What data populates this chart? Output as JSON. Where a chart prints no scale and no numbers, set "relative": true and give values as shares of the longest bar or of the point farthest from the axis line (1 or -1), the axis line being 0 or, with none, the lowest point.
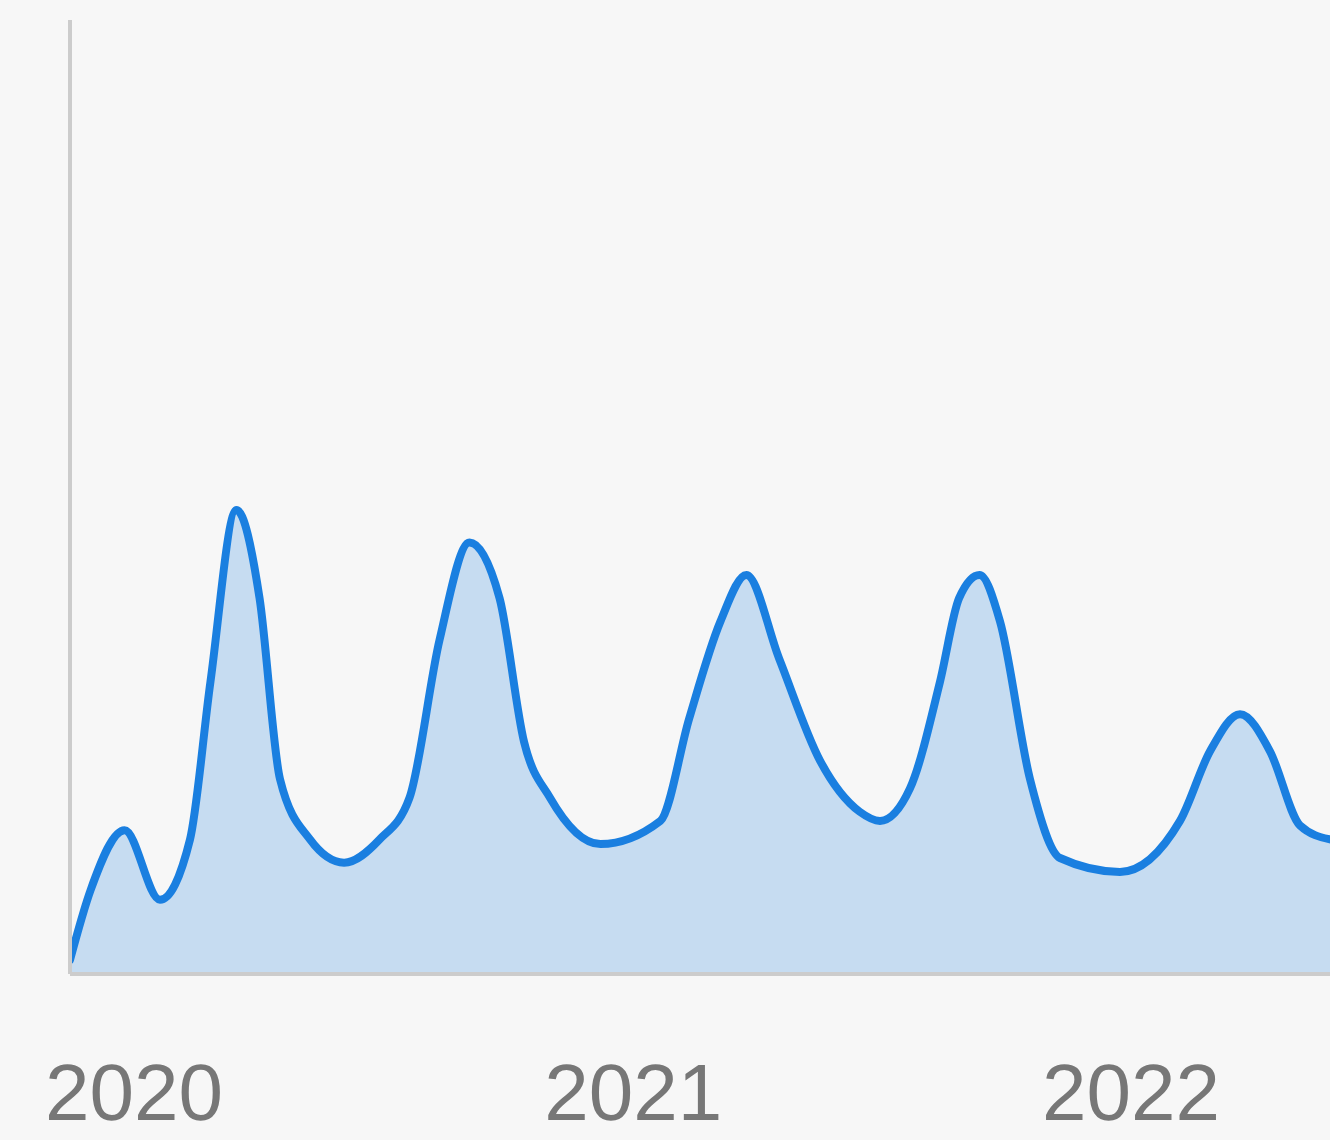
{
  "chart_data": {
    "type": "area",
    "relative": true,
    "xlim": [
      "2019-11-15",
      "2022-05-27"
    ],
    "xticks": [
      "2020",
      "2021",
      "2022"
    ],
    "x": [
      "2019-11-15",
      "2019-11-30",
      "2019-12-25",
      "2020-01-20",
      "2020-02-11",
      "2020-02-26",
      "2020-03-16",
      "2020-04-02",
      "2020-04-17",
      "2020-05-09",
      "2020-06-03",
      "2020-06-29",
      "2020-07-21",
      "2020-08-12",
      "2020-09-03",
      "2020-09-25",
      "2020-10-13",
      "2020-11-01",
      "2020-12-08",
      "2021-01-21",
      "2021-02-11",
      "2021-03-06",
      "2021-03-25",
      "2021-04-18",
      "2021-05-18",
      "2021-06-16",
      "2021-07-01",
      "2021-07-23",
      "2021-08-14",
      "2021-08-28",
      "2021-09-12",
      "2021-09-27",
      "2021-10-19",
      "2021-11-10",
      "2021-12-24",
      "2022-02-06",
      "2022-02-28",
      "2022-03-22",
      "2022-04-13",
      "2022-05-05",
      "2022-05-27"
    ],
    "series": [
      {
        "color": "#1a7fe0",
        "values": [
          0.03,
          0.18,
          0.31,
          0.16,
          0.29,
          0.63,
          1,
          0.81,
          0.42,
          0.29,
          0.24,
          0.29,
          0.38,
          0.72,
          0.93,
          0.81,
          0.5,
          0.38,
          0.28,
          0.33,
          0.55,
          0.76,
          0.86,
          0.68,
          0.46,
          0.35,
          0.33,
          0.4,
          0.63,
          0.81,
          0.86,
          0.76,
          0.42,
          0.25,
          0.22,
          0.33,
          0.48,
          0.56,
          0.48,
          0.32,
          0.29
        ]
      }
    ],
    "line_style": "solid"
  }
}
